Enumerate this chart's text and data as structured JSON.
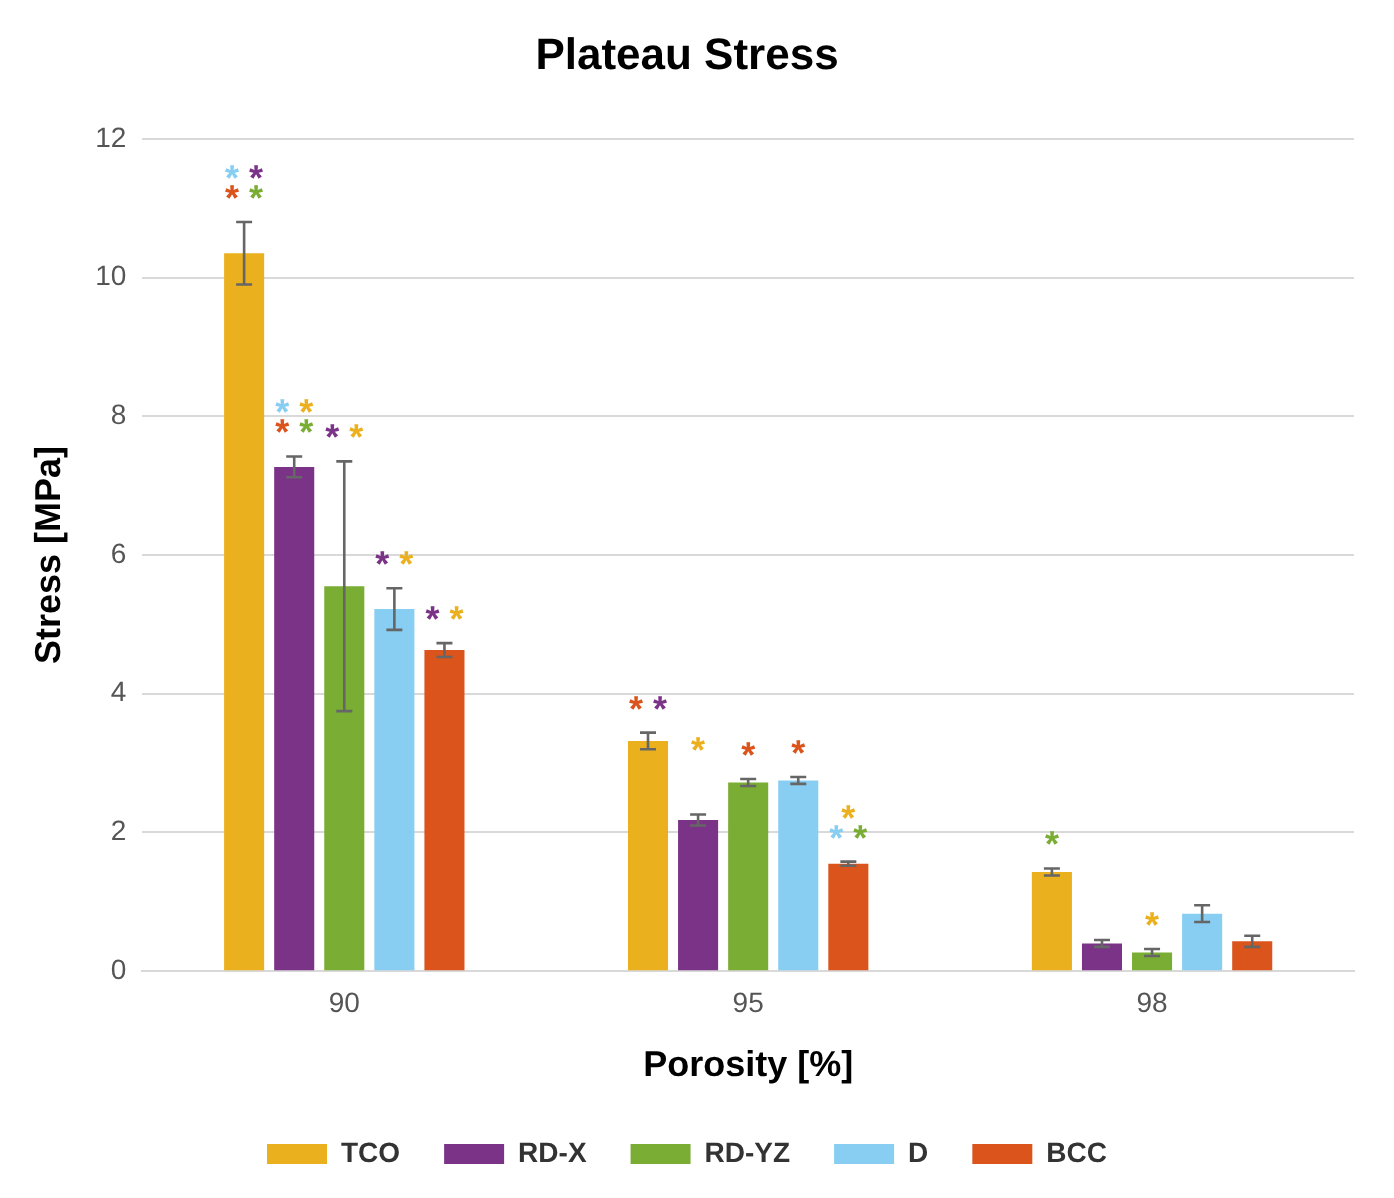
{
  "chart_data": {
    "type": "bar",
    "title": "Plateau Stress",
    "xlabel": "Porosity [%]",
    "ylabel": "Stress [MPa]",
    "categories": [
      "90",
      "95",
      "98"
    ],
    "series": [
      {
        "name": "TCO",
        "color": "#ebb01e",
        "values": [
          10.35,
          3.32,
          1.43
        ],
        "errors": [
          0.45,
          0.12,
          0.05
        ]
      },
      {
        "name": "RD-X",
        "color": "#7b3388",
        "values": [
          7.27,
          2.18,
          0.4
        ],
        "errors": [
          0.15,
          0.08,
          0.05
        ]
      },
      {
        "name": "RD-YZ",
        "color": "#7aad33",
        "values": [
          5.55,
          2.72,
          0.27
        ],
        "errors": [
          1.8,
          0.05,
          0.05
        ]
      },
      {
        "name": "D",
        "color": "#87cef2",
        "values": [
          5.22,
          2.75,
          0.83
        ],
        "errors": [
          0.3,
          0.05,
          0.12
        ]
      },
      {
        "name": "BCC",
        "color": "#da541b",
        "values": [
          4.63,
          1.55,
          0.43
        ],
        "errors": [
          0.1,
          0.03,
          0.08
        ]
      }
    ],
    "annotations": [
      "* *",
      "* *",
      "* *",
      "* *",
      "* *",
      "* *",
      "* *",
      "* *",
      "*",
      "*",
      "*",
      "* *",
      "*",
      "*",
      "*"
    ],
    "ylim": [
      0,
      12
    ],
    "yticks": [
      0,
      2,
      4,
      6,
      8,
      10,
      12
    ],
    "grid": "y",
    "legend": "bottom"
  }
}
